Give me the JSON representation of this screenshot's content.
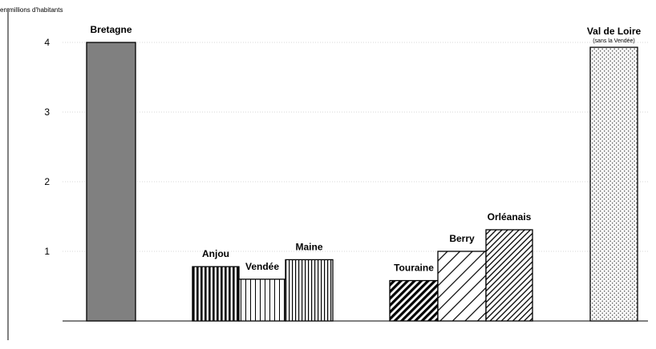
{
  "chart_data": {
    "type": "bar",
    "unit_label": "en millions d'habitants",
    "yticks": [
      "1",
      "2",
      "3",
      "4"
    ],
    "ylim": [
      0,
      4.3
    ],
    "grid": "horizontal dotted at 1, 2, 3, 4",
    "bars": [
      {
        "label": "Bretagne",
        "sublabel": "",
        "value": 4.0,
        "pattern": "solid-gray"
      },
      {
        "label": "Anjou",
        "sublabel": "",
        "value": 0.78,
        "pattern": "vertical-dense"
      },
      {
        "label": "Vendée",
        "sublabel": "",
        "value": 0.6,
        "pattern": "vertical-sparse"
      },
      {
        "label": "Maine",
        "sublabel": "",
        "value": 0.88,
        "pattern": "vertical-dense-light"
      },
      {
        "label": "Touraine",
        "sublabel": "",
        "value": 0.58,
        "pattern": "diagonal-dense"
      },
      {
        "label": "Berry",
        "sublabel": "",
        "value": 1.0,
        "pattern": "diagonal-sparse"
      },
      {
        "label": "Orléanais",
        "sublabel": "",
        "value": 1.31,
        "pattern": "diagonal-medium"
      },
      {
        "label": "Val de Loire",
        "sublabel": "(sans la Vendée)",
        "value": 3.93,
        "pattern": "dotted"
      }
    ],
    "colors": {
      "axis": "#000000",
      "grid": "#b0b0b0",
      "bretagne": "#808080"
    }
  }
}
